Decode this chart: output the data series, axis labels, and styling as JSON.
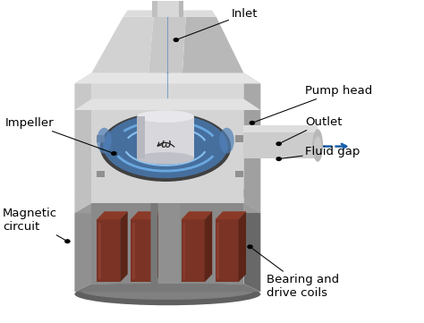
{
  "labels": [
    {
      "text": "Inlet",
      "dot": [
        0.415,
        0.878
      ],
      "textxy": [
        0.545,
        0.958
      ],
      "ha": "left",
      "va": "center"
    },
    {
      "text": "Pump head",
      "dot": [
        0.595,
        0.62
      ],
      "textxy": [
        0.72,
        0.72
      ],
      "ha": "left",
      "va": "center"
    },
    {
      "text": "Outlet",
      "dot": [
        0.658,
        0.555
      ],
      "textxy": [
        0.72,
        0.623
      ],
      "ha": "left",
      "va": "center"
    },
    {
      "text": "Fluid gap",
      "dot": [
        0.658,
        0.508
      ],
      "textxy": [
        0.72,
        0.53
      ],
      "ha": "left",
      "va": "center"
    },
    {
      "text": "Impeller",
      "dot": [
        0.268,
        0.525
      ],
      "textxy": [
        0.01,
        0.62
      ],
      "ha": "left",
      "va": "center"
    },
    {
      "text": "Magnetic\ncircuit",
      "dot": [
        0.158,
        0.252
      ],
      "textxy": [
        0.005,
        0.318
      ],
      "ha": "left",
      "va": "center"
    },
    {
      "text": "Bearing and\ndrive coils",
      "dot": [
        0.59,
        0.235
      ],
      "textxy": [
        0.63,
        0.112
      ],
      "ha": "left",
      "va": "center"
    }
  ],
  "bg_color": "#ffffff",
  "font_size": 9.5,
  "fig_width": 4.74,
  "fig_height": 3.61,
  "blue": "#2060b0",
  "blue_arrow": "#1a5fa8",
  "coil_front": "#7a3325",
  "coil_top": "#8c3a28",
  "coil_side": "#5c2518",
  "gray_housing": "#a8a8a8",
  "gray_light": "#d0d0d0",
  "gray_med": "#b8b8b8",
  "gray_dark": "#787878",
  "silver_light": "#e0e0e0",
  "silver_med": "#c8c8c8",
  "silver_dark": "#a0a0a0"
}
